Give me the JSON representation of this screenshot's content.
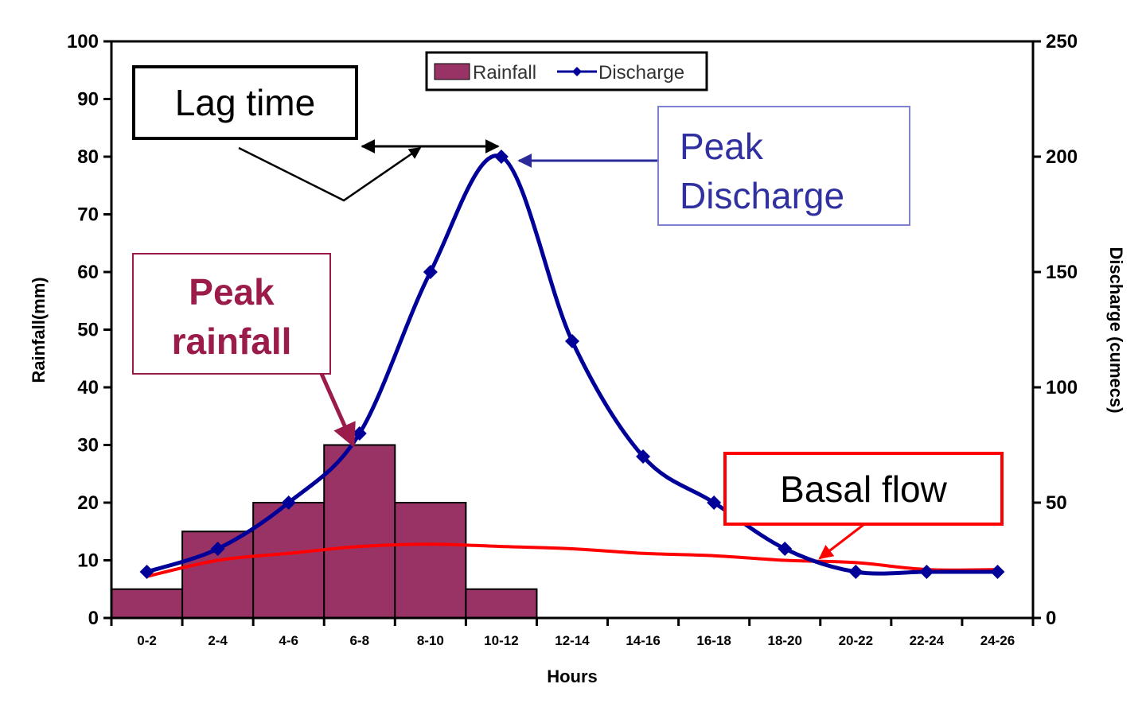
{
  "chart_data": {
    "type": "bar",
    "categories": [
      "0-2",
      "2-4",
      "4-6",
      "6-8",
      "8-10",
      "10-12",
      "12-14",
      "14-16",
      "16-18",
      "18-20",
      "20-22",
      "22-24",
      "24-26"
    ],
    "series": [
      {
        "name": "Rainfall",
        "type": "bar",
        "axis": "left",
        "color": "#993366",
        "values": [
          5,
          15,
          20,
          30,
          20,
          5,
          0,
          0,
          0,
          0,
          0,
          0,
          0
        ]
      },
      {
        "name": "Discharge",
        "type": "line",
        "axis": "right",
        "color": "#000099",
        "values": [
          20,
          30,
          50,
          80,
          150,
          200,
          120,
          70,
          50,
          30,
          20,
          20,
          20
        ]
      }
    ],
    "basal_flow": {
      "color": "#ff0000",
      "values": [
        18,
        25,
        28,
        31,
        32,
        31,
        30,
        28,
        27,
        25,
        24,
        21,
        21
      ]
    },
    "xlabel": "Hours",
    "ylabel_left": "Rainfall(mm)",
    "ylabel_right": "Discharge (cumecs)",
    "ylim_left": [
      0,
      100
    ],
    "ylim_right": [
      0,
      250
    ],
    "yticks_left": [
      "0",
      "10",
      "20",
      "30",
      "40",
      "50",
      "60",
      "70",
      "80",
      "90",
      "100"
    ],
    "yticks_right": [
      "0",
      "50",
      "100",
      "150",
      "200",
      "250"
    ],
    "legend": {
      "position": "top-center",
      "entries": [
        "Rainfall",
        "Discharge"
      ]
    },
    "grid": false
  },
  "annotations": {
    "lag_time": "Lag time",
    "peak_discharge": [
      "Peak",
      "Discharge"
    ],
    "peak_rainfall": [
      "Peak",
      "rainfall"
    ],
    "basal_flow": "Basal flow"
  },
  "colors": {
    "rainfall_bar": "#993366",
    "discharge_line": "#000099",
    "basal_line": "#ff0000",
    "peak_discharge_text": "#3030a0",
    "peak_rainfall_text": "#9b1b4a"
  }
}
